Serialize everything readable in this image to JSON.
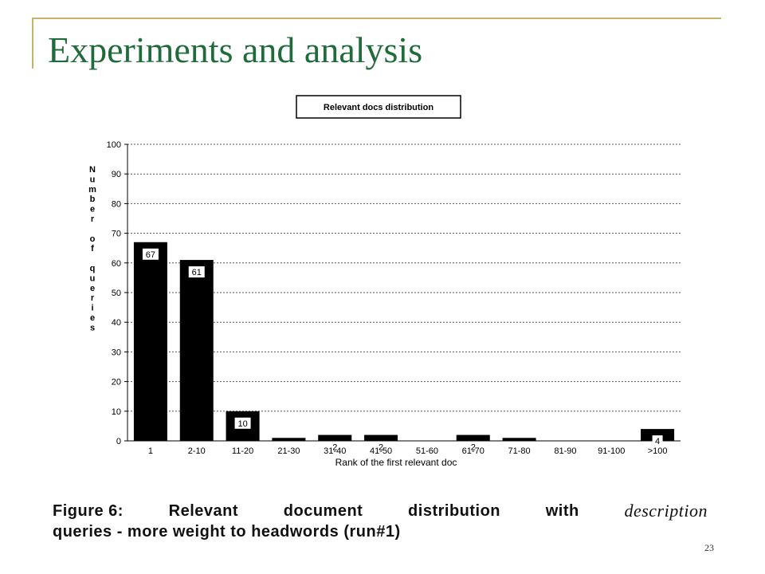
{
  "slide": {
    "title": "Experiments and analysis",
    "page_number": "23"
  },
  "caption": {
    "label": "Figure 6:",
    "line1_words": [
      "Relevant",
      "document",
      "distribution",
      "with"
    ],
    "emphasis": "description",
    "line2": "queries - more weight to headwords (run#1)"
  },
  "colors": {
    "title": "#1f6b3a",
    "rule": "#c8b36a",
    "bars": "#000000"
  },
  "chart_data": {
    "type": "bar",
    "title": "Relevant docs distribution",
    "xlabel": "Rank of the first relevant doc",
    "ylabel": "Number of queries",
    "ylim": [
      0,
      100
    ],
    "yticks": [
      0,
      10,
      20,
      30,
      40,
      50,
      60,
      70,
      80,
      90,
      100
    ],
    "grid": true,
    "categories": [
      "1",
      "2-10",
      "11-20",
      "21-30",
      "31-40",
      "41-50",
      "51-60",
      "61-70",
      "71-80",
      "81-90",
      "91-100",
      ">100"
    ],
    "values": [
      67,
      61,
      10,
      1,
      2,
      2,
      0,
      2,
      1,
      0,
      0,
      4
    ],
    "data_labels": [
      "67",
      "61",
      "10",
      "",
      "2",
      "2",
      "",
      "2",
      "",
      "",
      "",
      "4"
    ]
  }
}
